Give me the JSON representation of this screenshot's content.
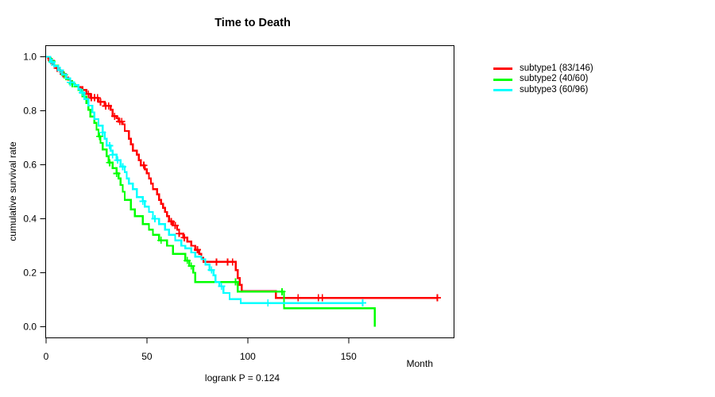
{
  "chart_data": {
    "type": "line",
    "variant": "kaplan-meier-step",
    "title": "Time to Death",
    "xlabel": "Month",
    "ylabel": "cumulative survival rate",
    "annotation": "logrank P = 0.124",
    "xlim": [
      0,
      200
    ],
    "ylim": [
      0.0,
      1.0
    ],
    "grid": false,
    "xticks": [
      0,
      50,
      100,
      150
    ],
    "ytick_labels": [
      "0.0",
      "0.2",
      "0.4",
      "0.6",
      "0.8",
      "1.0"
    ],
    "legend_position": "right-outside-top",
    "axis_color": "#000000",
    "series": [
      {
        "name": "subtype1 (83/146)",
        "color": "#FF0000",
        "end_time": 194,
        "steps": [
          [
            0,
            1
          ],
          [
            1,
            0.993
          ],
          [
            2,
            0.986
          ],
          [
            3,
            0.972
          ],
          [
            4,
            0.965
          ],
          [
            5,
            0.958
          ],
          [
            6,
            0.951
          ],
          [
            7,
            0.944
          ],
          [
            8,
            0.937
          ],
          [
            9,
            0.93
          ],
          [
            10,
            0.923
          ],
          [
            11,
            0.916
          ],
          [
            12,
            0.909
          ],
          [
            13,
            0.902
          ],
          [
            14,
            0.895
          ],
          [
            16,
            0.888
          ],
          [
            18,
            0.877
          ],
          [
            20,
            0.862
          ],
          [
            22,
            0.848
          ],
          [
            26,
            0.833
          ],
          [
            29,
            0.818
          ],
          [
            32,
            0.804
          ],
          [
            33,
            0.78
          ],
          [
            35,
            0.773
          ],
          [
            36,
            0.76
          ],
          [
            38,
            0.75
          ],
          [
            39,
            0.725
          ],
          [
            41,
            0.696
          ],
          [
            42,
            0.676
          ],
          [
            43,
            0.652
          ],
          [
            45,
            0.637
          ],
          [
            46,
            0.617
          ],
          [
            47,
            0.598
          ],
          [
            49,
            0.583
          ],
          [
            50,
            0.568
          ],
          [
            51,
            0.549
          ],
          [
            52,
            0.53
          ],
          [
            53,
            0.51
          ],
          [
            55,
            0.49
          ],
          [
            56,
            0.47
          ],
          [
            57,
            0.455
          ],
          [
            58,
            0.44
          ],
          [
            59,
            0.425
          ],
          [
            60,
            0.41
          ],
          [
            61,
            0.39
          ],
          [
            63,
            0.375
          ],
          [
            65,
            0.36
          ],
          [
            66,
            0.345
          ],
          [
            68,
            0.33
          ],
          [
            70,
            0.315
          ],
          [
            72,
            0.3
          ],
          [
            74,
            0.285
          ],
          [
            76,
            0.27
          ],
          [
            77,
            0.255
          ],
          [
            78,
            0.24
          ],
          [
            94,
            0.21
          ],
          [
            95,
            0.18
          ],
          [
            96,
            0.155
          ],
          [
            97,
            0.132
          ],
          [
            114,
            0.107
          ]
        ],
        "censor_times": [
          2.5,
          5.5,
          8.5,
          21,
          22.5,
          24,
          25.5,
          27,
          29.5,
          31,
          34,
          36.5,
          37.5,
          48.5,
          62,
          64,
          66,
          68.5,
          75,
          84.5,
          90,
          92.5,
          125,
          135,
          137,
          194
        ]
      },
      {
        "name": "subtype2 (40/60)",
        "color": "#00FF00",
        "end_time": 163,
        "steps": [
          [
            0,
            1
          ],
          [
            2,
            0.983
          ],
          [
            4,
            0.967
          ],
          [
            6,
            0.95
          ],
          [
            8,
            0.933
          ],
          [
            10,
            0.917
          ],
          [
            12,
            0.9
          ],
          [
            14,
            0.89
          ],
          [
            16,
            0.877
          ],
          [
            18,
            0.853
          ],
          [
            20,
            0.828
          ],
          [
            21,
            0.804
          ],
          [
            22,
            0.779
          ],
          [
            24,
            0.755
          ],
          [
            25,
            0.73
          ],
          [
            26,
            0.705
          ],
          [
            27,
            0.681
          ],
          [
            28,
            0.657
          ],
          [
            30,
            0.632
          ],
          [
            31,
            0.608
          ],
          [
            33,
            0.588
          ],
          [
            35,
            0.568
          ],
          [
            36,
            0.549
          ],
          [
            37,
            0.525
          ],
          [
            38,
            0.5
          ],
          [
            39,
            0.47
          ],
          [
            42,
            0.435
          ],
          [
            44,
            0.41
          ],
          [
            48,
            0.38
          ],
          [
            51,
            0.36
          ],
          [
            53,
            0.34
          ],
          [
            56,
            0.32
          ],
          [
            60,
            0.3
          ],
          [
            63,
            0.27
          ],
          [
            69,
            0.245
          ],
          [
            71,
            0.225
          ],
          [
            73,
            0.2
          ],
          [
            74,
            0.166
          ],
          [
            95,
            0.13
          ],
          [
            118,
            0.068
          ],
          [
            163,
            0
          ]
        ],
        "censor_times": [
          3,
          9,
          13,
          26.5,
          31.5,
          35,
          57,
          70,
          72,
          94,
          117
        ]
      },
      {
        "name": "subtype3 (60/96)",
        "color": "#00FFFF",
        "end_time": 157,
        "steps": [
          [
            0,
            1
          ],
          [
            2,
            0.98
          ],
          [
            4,
            0.965
          ],
          [
            6,
            0.95
          ],
          [
            8,
            0.935
          ],
          [
            10,
            0.92
          ],
          [
            12,
            0.905
          ],
          [
            14,
            0.895
          ],
          [
            16,
            0.88
          ],
          [
            17,
            0.867
          ],
          [
            19,
            0.843
          ],
          [
            21,
            0.819
          ],
          [
            23,
            0.794
          ],
          [
            24,
            0.769
          ],
          [
            26,
            0.745
          ],
          [
            28,
            0.72
          ],
          [
            29,
            0.696
          ],
          [
            30,
            0.671
          ],
          [
            32,
            0.652
          ],
          [
            33,
            0.637
          ],
          [
            35,
            0.617
          ],
          [
            37,
            0.593
          ],
          [
            39,
            0.573
          ],
          [
            40,
            0.549
          ],
          [
            41,
            0.53
          ],
          [
            43,
            0.51
          ],
          [
            45,
            0.48
          ],
          [
            48,
            0.465
          ],
          [
            49,
            0.445
          ],
          [
            51,
            0.425
          ],
          [
            53,
            0.4
          ],
          [
            56,
            0.38
          ],
          [
            59,
            0.36
          ],
          [
            61,
            0.34
          ],
          [
            64,
            0.32
          ],
          [
            67,
            0.3
          ],
          [
            69,
            0.29
          ],
          [
            72,
            0.275
          ],
          [
            74,
            0.26
          ],
          [
            77,
            0.25
          ],
          [
            79,
            0.23
          ],
          [
            81,
            0.21
          ],
          [
            83,
            0.19
          ],
          [
            84,
            0.165
          ],
          [
            86,
            0.15
          ],
          [
            88,
            0.125
          ],
          [
            91,
            0.102
          ],
          [
            96.5,
            0.088
          ]
        ],
        "censor_times": [
          3,
          7,
          12,
          18,
          28,
          31.5,
          33,
          35.5,
          38,
          48,
          54,
          82,
          87,
          110,
          157
        ]
      }
    ]
  }
}
